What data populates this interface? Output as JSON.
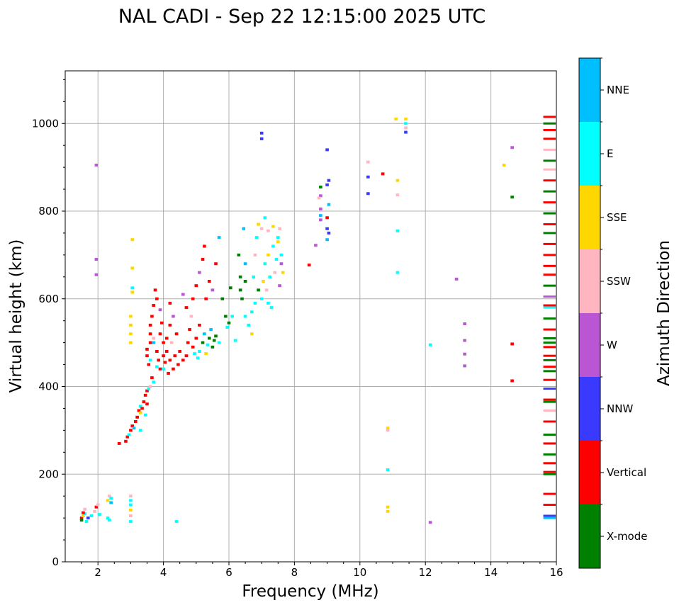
{
  "chart_data": {
    "type": "scatter",
    "title": "NAL CADI - Sep 22 12:15:00 2025 UTC",
    "xlabel": "Frequency (MHz)",
    "ylabel": "Virtual height (km)",
    "xlim": [
      1,
      16
    ],
    "ylim": [
      0,
      1120
    ],
    "xticks": [
      2,
      4,
      6,
      8,
      10,
      12,
      14,
      16
    ],
    "yticks": [
      0,
      200,
      400,
      600,
      800,
      1000
    ],
    "grid": true,
    "colorbar": {
      "label": "Azimuth Direction",
      "placement": "right",
      "categories": [
        {
          "name": "X-mode",
          "color": "#008000"
        },
        {
          "name": "Vertical",
          "color": "#ff0000"
        },
        {
          "name": "NNW",
          "color": "#3a3aff"
        },
        {
          "name": "W",
          "color": "#ba55d3"
        },
        {
          "name": "SSW",
          "color": "#ffb6c1"
        },
        {
          "name": "SSE",
          "color": "#ffd700"
        },
        {
          "name": "E",
          "color": "#00ffff"
        },
        {
          "name": "NNE",
          "color": "#00bfff"
        }
      ]
    },
    "point_fields": [
      "frequency_mhz",
      "virtual_height_km",
      "direction_index"
    ],
    "points": [
      [
        1.5,
        100,
        1
      ],
      [
        1.5,
        95,
        0
      ],
      [
        1.55,
        105,
        5
      ],
      [
        1.6,
        110,
        6
      ],
      [
        1.6,
        120,
        4
      ],
      [
        1.65,
        92,
        6
      ],
      [
        1.7,
        100,
        2
      ],
      [
        1.55,
        112,
        1
      ],
      [
        1.8,
        105,
        6
      ],
      [
        1.9,
        115,
        4
      ],
      [
        1.95,
        125,
        1
      ],
      [
        2.0,
        130,
        4
      ],
      [
        2.05,
        108,
        6
      ],
      [
        2.3,
        140,
        5
      ],
      [
        2.35,
        150,
        4
      ],
      [
        2.35,
        95,
        6
      ],
      [
        2.4,
        135,
        7
      ],
      [
        2.3,
        100,
        6
      ],
      [
        2.4,
        145,
        6
      ],
      [
        3.0,
        150,
        4
      ],
      [
        3.0,
        140,
        6
      ],
      [
        3.0,
        130,
        6
      ],
      [
        3.0,
        118,
        5
      ],
      [
        3.0,
        105,
        4
      ],
      [
        3.0,
        92,
        6
      ],
      [
        4.4,
        92,
        6
      ],
      [
        12.15,
        90,
        3
      ],
      [
        2.65,
        270,
        1
      ],
      [
        2.85,
        275,
        1
      ],
      [
        2.9,
        285,
        1
      ],
      [
        2.95,
        290,
        6
      ],
      [
        3.0,
        300,
        1
      ],
      [
        3.05,
        310,
        1
      ],
      [
        3.1,
        305,
        7
      ],
      [
        3.15,
        320,
        1
      ],
      [
        3.2,
        330,
        1
      ],
      [
        3.25,
        345,
        1
      ],
      [
        3.3,
        355,
        6
      ],
      [
        3.3,
        340,
        5
      ],
      [
        3.35,
        350,
        1
      ],
      [
        3.4,
        365,
        1
      ],
      [
        3.45,
        380,
        1
      ],
      [
        3.5,
        390,
        1
      ],
      [
        3.55,
        395,
        6
      ],
      [
        3.6,
        400,
        4
      ],
      [
        3.7,
        410,
        6
      ],
      [
        3.3,
        300,
        6
      ],
      [
        3.45,
        335,
        6
      ],
      [
        3.5,
        360,
        1
      ],
      [
        3.5,
        470,
        1
      ],
      [
        3.5,
        485,
        1
      ],
      [
        3.55,
        450,
        1
      ],
      [
        3.6,
        500,
        1
      ],
      [
        3.6,
        520,
        1
      ],
      [
        3.6,
        540,
        1
      ],
      [
        3.65,
        560,
        1
      ],
      [
        3.7,
        585,
        1
      ],
      [
        3.75,
        620,
        1
      ],
      [
        3.8,
        600,
        1
      ],
      [
        3.8,
        480,
        1
      ],
      [
        3.85,
        460,
        1
      ],
      [
        3.9,
        440,
        1
      ],
      [
        3.9,
        520,
        1
      ],
      [
        3.95,
        545,
        1
      ],
      [
        4.0,
        500,
        1
      ],
      [
        4.0,
        470,
        1
      ],
      [
        4.0,
        440,
        6
      ],
      [
        4.05,
        455,
        1
      ],
      [
        4.1,
        480,
        1
      ],
      [
        4.1,
        510,
        1
      ],
      [
        4.15,
        430,
        1
      ],
      [
        4.2,
        460,
        1
      ],
      [
        4.2,
        540,
        1
      ],
      [
        4.25,
        500,
        4
      ],
      [
        4.3,
        440,
        1
      ],
      [
        4.35,
        470,
        1
      ],
      [
        4.4,
        520,
        1
      ],
      [
        4.45,
        450,
        1
      ],
      [
        4.5,
        480,
        1
      ],
      [
        3.7,
        500,
        7
      ],
      [
        3.6,
        460,
        6
      ],
      [
        3.8,
        445,
        6
      ],
      [
        3.9,
        575,
        3
      ],
      [
        4.2,
        590,
        1
      ],
      [
        4.3,
        560,
        3
      ],
      [
        3.65,
        420,
        1
      ],
      [
        3.7,
        510,
        4
      ],
      [
        4.6,
        460,
        1
      ],
      [
        4.7,
        470,
        1
      ],
      [
        4.75,
        500,
        1
      ],
      [
        4.8,
        530,
        1
      ],
      [
        4.85,
        560,
        4
      ],
      [
        4.9,
        490,
        1
      ],
      [
        4.95,
        475,
        6
      ],
      [
        5.0,
        510,
        1
      ],
      [
        5.05,
        465,
        6
      ],
      [
        5.1,
        480,
        6
      ],
      [
        5.1,
        540,
        1
      ],
      [
        5.2,
        500,
        0
      ],
      [
        5.25,
        520,
        7
      ],
      [
        5.3,
        475,
        5
      ],
      [
        5.35,
        495,
        6
      ],
      [
        5.4,
        510,
        0
      ],
      [
        5.45,
        530,
        7
      ],
      [
        5.5,
        490,
        0
      ],
      [
        5.55,
        505,
        0
      ],
      [
        5.6,
        515,
        0
      ],
      [
        5.7,
        500,
        6
      ],
      [
        4.9,
        600,
        1
      ],
      [
        5.0,
        630,
        1
      ],
      [
        5.1,
        660,
        3
      ],
      [
        5.2,
        690,
        1
      ],
      [
        5.25,
        720,
        1
      ],
      [
        5.4,
        640,
        1
      ],
      [
        5.5,
        620,
        3
      ],
      [
        5.6,
        680,
        1
      ],
      [
        5.3,
        600,
        1
      ],
      [
        4.7,
        580,
        1
      ],
      [
        4.6,
        610,
        3
      ],
      [
        5.7,
        740,
        7
      ],
      [
        5.8,
        600,
        0
      ],
      [
        5.9,
        560,
        0
      ],
      [
        5.95,
        535,
        6
      ],
      [
        6.0,
        545,
        0
      ],
      [
        6.05,
        625,
        0
      ],
      [
        6.1,
        560,
        6
      ],
      [
        6.2,
        505,
        6
      ],
      [
        6.3,
        700,
        0
      ],
      [
        6.35,
        650,
        0
      ],
      [
        6.35,
        620,
        0
      ],
      [
        6.4,
        600,
        0
      ],
      [
        6.5,
        680,
        7
      ],
      [
        6.5,
        560,
        6
      ],
      [
        6.6,
        540,
        6
      ],
      [
        6.7,
        570,
        6
      ],
      [
        6.7,
        520,
        5
      ],
      [
        6.75,
        650,
        6
      ],
      [
        6.8,
        700,
        4
      ],
      [
        6.85,
        740,
        6
      ],
      [
        6.9,
        770,
        5
      ],
      [
        7.0,
        760,
        4
      ],
      [
        7.0,
        600,
        6
      ],
      [
        7.05,
        640,
        5
      ],
      [
        7.1,
        680,
        6
      ],
      [
        7.1,
        785,
        6
      ],
      [
        7.15,
        620,
        4
      ],
      [
        7.2,
        590,
        6
      ],
      [
        7.2,
        700,
        5
      ],
      [
        7.25,
        650,
        6
      ],
      [
        7.3,
        580,
        6
      ],
      [
        7.35,
        720,
        6
      ],
      [
        7.4,
        660,
        4
      ],
      [
        7.45,
        690,
        6
      ],
      [
        7.5,
        740,
        6
      ],
      [
        7.5,
        730,
        5
      ],
      [
        7.55,
        760,
        4
      ],
      [
        7.6,
        700,
        6
      ],
      [
        7.6,
        680,
        3
      ],
      [
        7.65,
        660,
        5
      ],
      [
        7.55,
        630,
        3
      ],
      [
        6.9,
        620,
        0
      ],
      [
        6.5,
        640,
        0
      ],
      [
        6.8,
        590,
        6
      ],
      [
        6.45,
        760,
        7
      ],
      [
        7.35,
        765,
        5
      ],
      [
        7.2,
        755,
        4
      ],
      [
        1.95,
        905,
        3
      ],
      [
        1.95,
        690,
        3
      ],
      [
        1.95,
        655,
        3
      ],
      [
        3.05,
        735,
        5
      ],
      [
        3.05,
        670,
        5
      ],
      [
        3.05,
        625,
        6
      ],
      [
        3.05,
        615,
        5
      ],
      [
        3.0,
        560,
        5
      ],
      [
        3.0,
        540,
        5
      ],
      [
        3.0,
        520,
        5
      ],
      [
        3.0,
        500,
        5
      ],
      [
        7.0,
        978,
        2
      ],
      [
        7.0,
        965,
        2
      ],
      [
        8.45,
        677,
        1
      ],
      [
        8.65,
        722,
        3
      ],
      [
        8.8,
        855,
        0
      ],
      [
        8.8,
        835,
        3
      ],
      [
        8.8,
        805,
        3
      ],
      [
        8.8,
        790,
        7
      ],
      [
        8.8,
        780,
        3
      ],
      [
        8.75,
        830,
        4
      ],
      [
        9.0,
        940,
        2
      ],
      [
        9.05,
        870,
        2
      ],
      [
        9.0,
        860,
        2
      ],
      [
        9.05,
        815,
        7
      ],
      [
        9.0,
        785,
        1
      ],
      [
        9.0,
        760,
        2
      ],
      [
        9.05,
        750,
        2
      ],
      [
        9.0,
        735,
        7
      ],
      [
        10.25,
        912,
        4
      ],
      [
        10.25,
        878,
        2
      ],
      [
        10.25,
        840,
        2
      ],
      [
        10.7,
        885,
        1
      ],
      [
        11.15,
        870,
        5
      ],
      [
        11.15,
        837,
        4
      ],
      [
        11.15,
        755,
        6
      ],
      [
        11.15,
        660,
        6
      ],
      [
        11.1,
        1010,
        5
      ],
      [
        11.4,
        1010,
        5
      ],
      [
        11.4,
        1000,
        6
      ],
      [
        11.4,
        990,
        4
      ],
      [
        11.4,
        980,
        2
      ],
      [
        12.15,
        495,
        6
      ],
      [
        12.95,
        645,
        3
      ],
      [
        13.2,
        543,
        3
      ],
      [
        13.2,
        505,
        3
      ],
      [
        13.2,
        474,
        3
      ],
      [
        13.2,
        447,
        3
      ],
      [
        14.4,
        905,
        5
      ],
      [
        14.65,
        945,
        3
      ],
      [
        14.65,
        832,
        0
      ],
      [
        14.65,
        497,
        1
      ],
      [
        14.65,
        413,
        1
      ],
      [
        10.85,
        305,
        5
      ],
      [
        10.85,
        300,
        4
      ],
      [
        10.85,
        210,
        6
      ],
      [
        10.85,
        125,
        5
      ],
      [
        10.85,
        115,
        5
      ]
    ],
    "edge_column": {
      "freq_range_mhz": [
        15.6,
        16.0
      ],
      "point_fields": [
        "virtual_height_km",
        "direction_index"
      ],
      "points": [
        [
          100,
          7
        ],
        [
          105,
          2
        ],
        [
          130,
          1
        ],
        [
          155,
          1
        ],
        [
          200,
          0
        ],
        [
          205,
          1
        ],
        [
          225,
          1
        ],
        [
          245,
          0
        ],
        [
          270,
          1
        ],
        [
          290,
          0
        ],
        [
          320,
          1
        ],
        [
          345,
          4
        ],
        [
          365,
          0
        ],
        [
          370,
          1
        ],
        [
          395,
          2
        ],
        [
          415,
          1
        ],
        [
          435,
          0
        ],
        [
          445,
          1
        ],
        [
          460,
          0
        ],
        [
          470,
          1
        ],
        [
          490,
          1
        ],
        [
          500,
          0
        ],
        [
          510,
          0
        ],
        [
          530,
          1
        ],
        [
          555,
          0
        ],
        [
          580,
          6
        ],
        [
          585,
          1
        ],
        [
          605,
          3
        ],
        [
          630,
          0
        ],
        [
          655,
          1
        ],
        [
          675,
          1
        ],
        [
          700,
          1
        ],
        [
          725,
          1
        ],
        [
          750,
          0
        ],
        [
          770,
          1
        ],
        [
          795,
          0
        ],
        [
          820,
          1
        ],
        [
          845,
          0
        ],
        [
          870,
          1
        ],
        [
          895,
          4
        ],
        [
          915,
          0
        ],
        [
          940,
          4
        ],
        [
          965,
          1
        ],
        [
          985,
          1
        ],
        [
          1000,
          0
        ],
        [
          1015,
          1
        ]
      ]
    }
  }
}
